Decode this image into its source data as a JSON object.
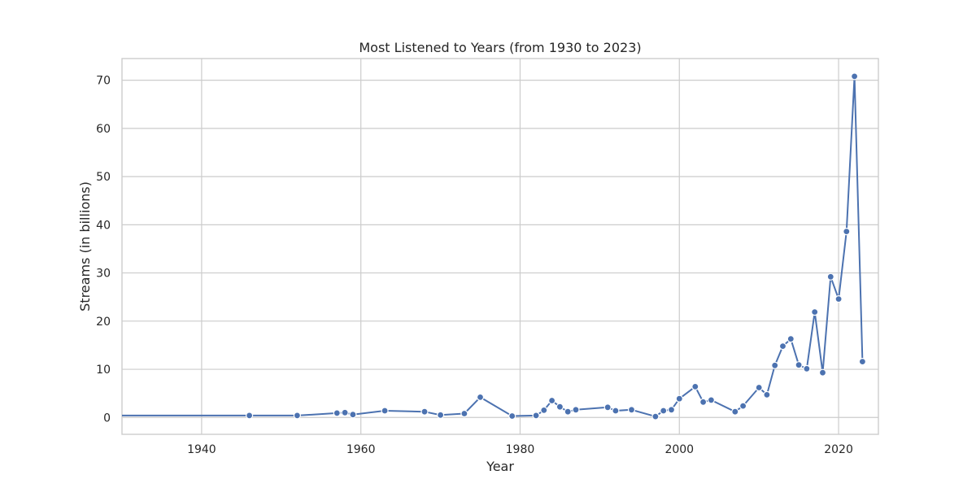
{
  "chart_data": {
    "type": "line",
    "title": "Most Listened to Years (from 1930 to 2023)",
    "xlabel": "Year",
    "ylabel": "Streams (in billions)",
    "xlim": [
      1930,
      2025
    ],
    "ylim": [
      -3.5,
      74.5
    ],
    "xticks": [
      1940,
      1960,
      1980,
      2000,
      2020
    ],
    "yticks": [
      0,
      10,
      20,
      30,
      40,
      50,
      60,
      70
    ],
    "grid": true,
    "legend": "none",
    "colors": {
      "series": "#4c72b0",
      "grid": "#cccccc"
    },
    "series": [
      {
        "x": [
          1930,
          1946,
          1952,
          1957,
          1958,
          1959,
          1963,
          1968,
          1970,
          1973,
          1975,
          1979,
          1982,
          1983,
          1984,
          1985,
          1986,
          1987,
          1991,
          1992,
          1994,
          1997,
          1998,
          1999,
          2000,
          2002,
          2003,
          2004,
          2007,
          2008,
          2010,
          2011,
          2012,
          2013,
          2014,
          2015,
          2016,
          2017,
          2018,
          2019,
          2020,
          2021,
          2022,
          2023
        ],
        "y": [
          0.4,
          0.4,
          0.4,
          0.9,
          1.0,
          0.6,
          1.4,
          1.2,
          0.5,
          0.8,
          4.2,
          0.3,
          0.4,
          1.5,
          3.5,
          2.2,
          1.2,
          1.6,
          2.1,
          1.4,
          1.6,
          0.2,
          1.4,
          1.6,
          3.9,
          6.4,
          3.2,
          3.6,
          1.2,
          2.4,
          6.2,
          4.7,
          10.8,
          14.8,
          16.3,
          10.9,
          10.1,
          21.9,
          9.3,
          29.2,
          24.6,
          38.6,
          70.8,
          11.6
        ]
      }
    ]
  }
}
